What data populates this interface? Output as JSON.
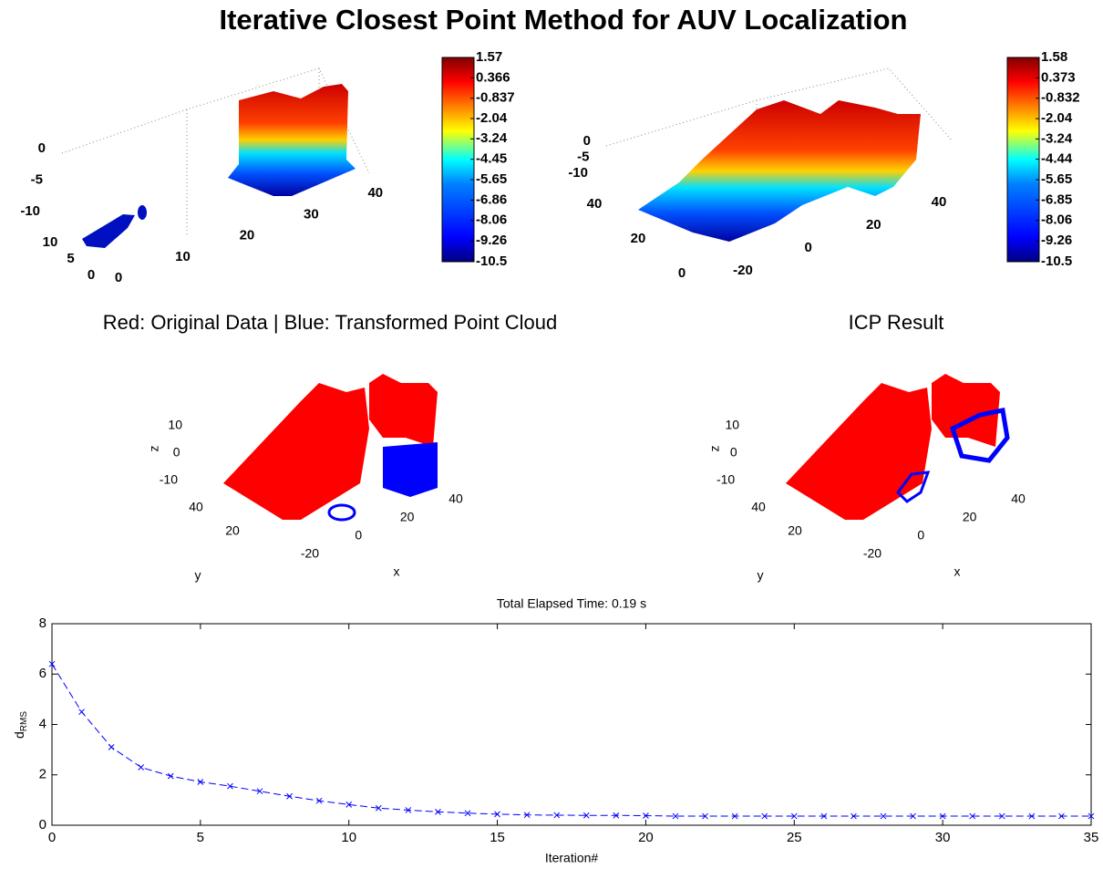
{
  "title": "Iterative Closest Point Method for AUV Localization",
  "chart_data": [
    {
      "type": "scatter3d",
      "xlim": [
        0,
        44
      ],
      "xticks": [
        0,
        10,
        20,
        30,
        40
      ],
      "ylim": [
        0,
        11
      ],
      "yticks": [
        0,
        5,
        10
      ],
      "zlim": [
        -11,
        2
      ],
      "zticks": [
        0,
        -5,
        -10
      ],
      "clim": [
        -10.5,
        1.57
      ],
      "colorbar_ticks": [
        1.57,
        0.366,
        -0.837,
        -2.04,
        -3.24,
        -4.45,
        -5.65,
        -6.86,
        -8.06,
        -9.26,
        -10.5
      ]
    },
    {
      "type": "scatter3d",
      "xlim": [
        -30,
        50
      ],
      "xticks": [
        -20,
        0,
        20,
        40
      ],
      "ylim": [
        0,
        50
      ],
      "yticks": [
        0,
        20,
        40
      ],
      "zlim": [
        -11,
        2
      ],
      "zticks": [
        0,
        -5,
        -10
      ],
      "clim": [
        -10.5,
        1.58
      ],
      "colorbar_ticks": [
        1.58,
        0.373,
        -0.832,
        -2.04,
        -3.24,
        -4.44,
        -5.65,
        -6.85,
        -8.06,
        -9.26,
        -10.5
      ]
    },
    {
      "type": "scatter3d",
      "title": "Red: Original Data | Blue: Transformed Point Cloud",
      "xlabel": "x",
      "ylabel": "y",
      "zlabel": "z",
      "xlim": [
        -30,
        50
      ],
      "xticks": [
        -20,
        0,
        20,
        40
      ],
      "ylim": [
        0,
        50
      ],
      "yticks": [
        20,
        40
      ],
      "zlim": [
        -15,
        20
      ],
      "zticks": [
        10,
        0,
        -10
      ]
    },
    {
      "type": "scatter3d",
      "title": "ICP Result",
      "xlabel": "x",
      "ylabel": "y",
      "zlabel": "z",
      "xlim": [
        -30,
        50
      ],
      "xticks": [
        -20,
        0,
        20,
        40
      ],
      "ylim": [
        0,
        50
      ],
      "yticks": [
        20,
        40
      ],
      "zlim": [
        -15,
        20
      ],
      "zticks": [
        10,
        0,
        -10
      ]
    },
    {
      "type": "line",
      "title": "Total Elapsed Time: 0.19 s",
      "xlabel": "Iteration#",
      "ylabel": {
        "text": "d",
        "subscript": "RMS"
      },
      "x": [
        0,
        1,
        2,
        3,
        4,
        5,
        6,
        7,
        8,
        9,
        10,
        11,
        12,
        13,
        14,
        15,
        16,
        17,
        18,
        19,
        20,
        21,
        22,
        23,
        24,
        25,
        26,
        27,
        28,
        29,
        30,
        31,
        32,
        33,
        34,
        35
      ],
      "series": [
        {
          "color": "#0000ff",
          "values": [
            6.4,
            4.5,
            3.1,
            2.3,
            1.95,
            1.72,
            1.55,
            1.35,
            1.15,
            0.97,
            0.82,
            0.68,
            0.6,
            0.53,
            0.48,
            0.44,
            0.41,
            0.4,
            0.39,
            0.39,
            0.38,
            0.36,
            0.36,
            0.36,
            0.36,
            0.36,
            0.36,
            0.36,
            0.36,
            0.36,
            0.36,
            0.36,
            0.36,
            0.36,
            0.36,
            0.36
          ]
        }
      ],
      "xlim": [
        0,
        35
      ],
      "xticks": [
        0,
        5,
        10,
        15,
        20,
        25,
        30,
        35
      ],
      "ylim": [
        0,
        8
      ],
      "yticks": [
        0,
        2,
        4,
        6,
        8
      ]
    }
  ]
}
